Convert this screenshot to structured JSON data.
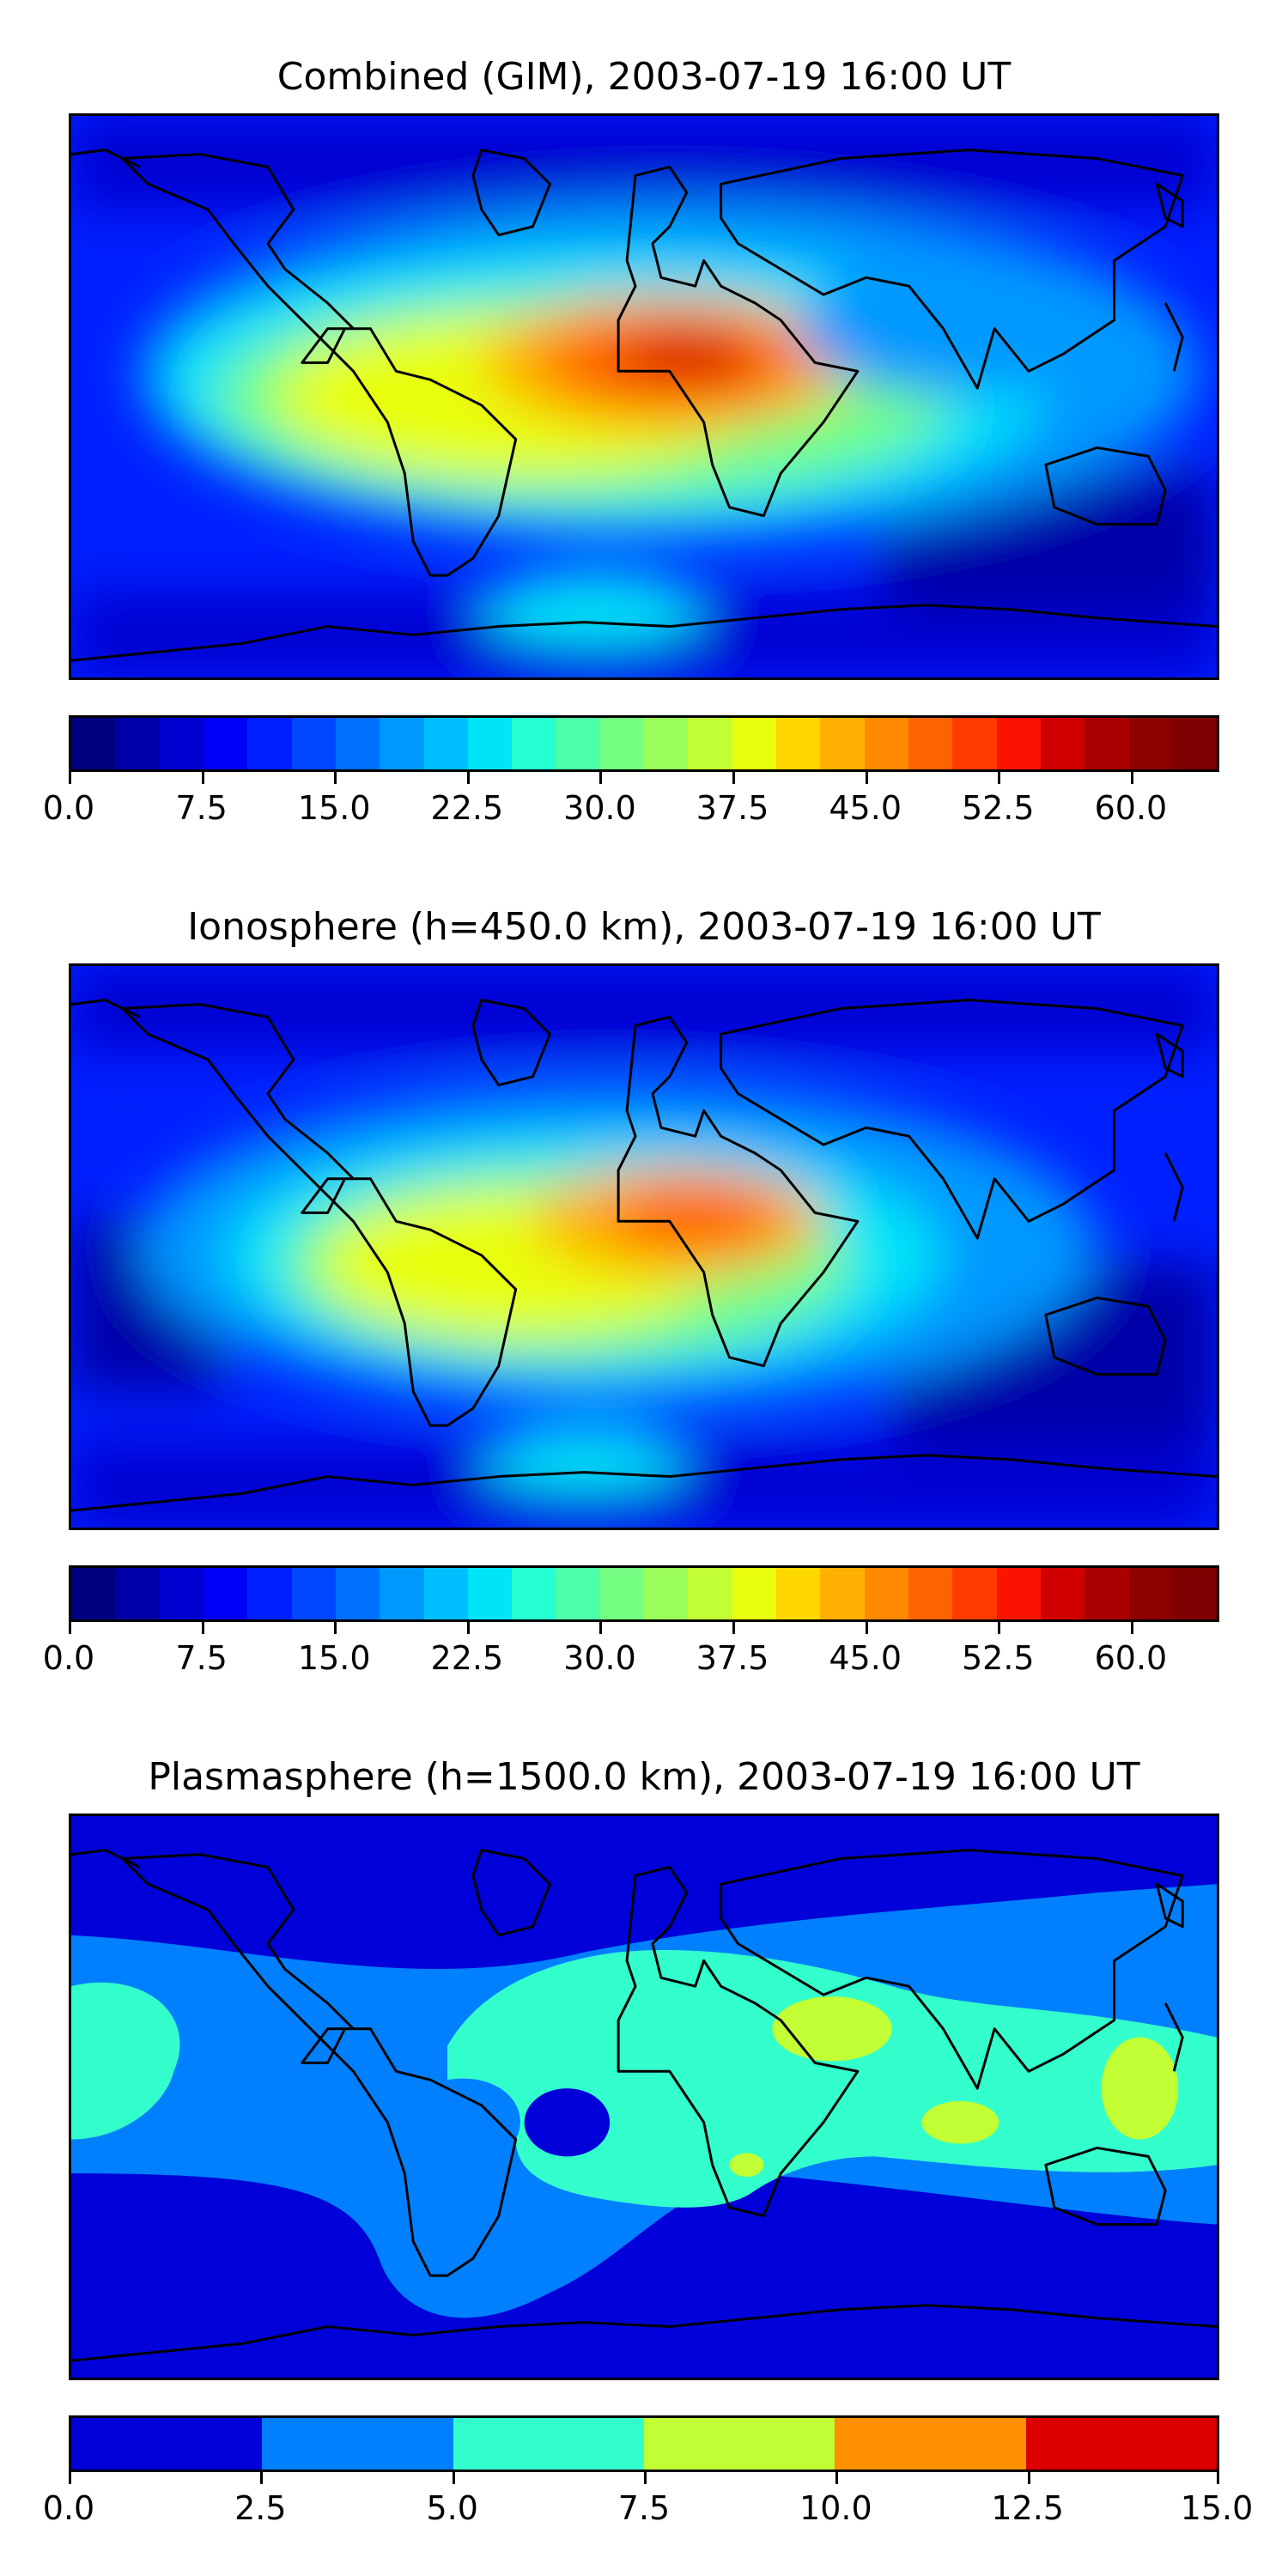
{
  "panels": [
    {
      "title": "Combined (GIM), 2003-07-19 16:00 UT",
      "colorbar": {
        "min": 0.0,
        "max": 65.0,
        "levels": 26,
        "ticks": [
          "0.0",
          "7.5",
          "15.0",
          "22.5",
          "30.0",
          "37.5",
          "45.0",
          "52.5",
          "60.0"
        ],
        "tick_values": [
          0,
          7.5,
          15,
          22.5,
          30,
          37.5,
          45,
          52.5,
          60
        ],
        "colors": [
          "#00007f",
          "#0000a8",
          "#0000d1",
          "#0000fa",
          "#0020ff",
          "#0048ff",
          "#0070ff",
          "#0098ff",
          "#00bfff",
          "#00e4f8",
          "#26ffd1",
          "#4dffaa",
          "#74ff82",
          "#9aff5b",
          "#c1ff34",
          "#e8ff0e",
          "#ffd700",
          "#ffb000",
          "#ff8900",
          "#ff6200",
          "#ff3b00",
          "#fa1400",
          "#d10000",
          "#a80000",
          "#8c0000",
          "#7f0000"
        ]
      }
    },
    {
      "title": "Ionosphere  (h=450.0 km), 2003-07-19 16:00 UT",
      "colorbar": {
        "min": 0.0,
        "max": 65.0,
        "levels": 26,
        "ticks": [
          "0.0",
          "7.5",
          "15.0",
          "22.5",
          "30.0",
          "37.5",
          "45.0",
          "52.5",
          "60.0"
        ],
        "tick_values": [
          0,
          7.5,
          15,
          22.5,
          30,
          37.5,
          45,
          52.5,
          60
        ],
        "colors": [
          "#00007f",
          "#0000a8",
          "#0000d1",
          "#0000fa",
          "#0020ff",
          "#0048ff",
          "#0070ff",
          "#0098ff",
          "#00bfff",
          "#00e4f8",
          "#26ffd1",
          "#4dffaa",
          "#74ff82",
          "#9aff5b",
          "#c1ff34",
          "#e8ff0e",
          "#ffd700",
          "#ffb000",
          "#ff8900",
          "#ff6200",
          "#ff3b00",
          "#fa1400",
          "#d10000",
          "#a80000",
          "#8c0000",
          "#7f0000"
        ]
      }
    },
    {
      "title": "Plasmasphere (h=1500.0 km), 2003-07-19 16:00 UT",
      "colorbar": {
        "min": 0.0,
        "max": 15.0,
        "levels": 6,
        "ticks": [
          "0.0",
          "2.5",
          "5.0",
          "7.5",
          "10.0",
          "12.5",
          "15.0"
        ],
        "tick_values": [
          0,
          2.5,
          5,
          7.5,
          10,
          12.5,
          15
        ],
        "colors": [
          "#0000d8",
          "#0080ff",
          "#33ffcc",
          "#c1ff34",
          "#ff9000",
          "#dc0000"
        ]
      }
    }
  ]
}
